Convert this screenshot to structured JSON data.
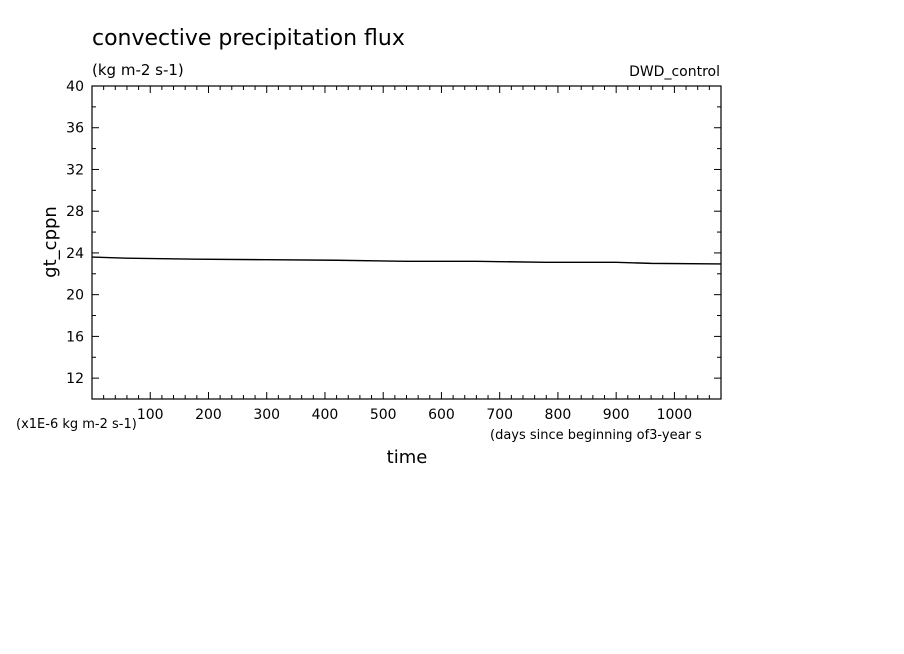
{
  "chart_data": {
    "type": "line",
    "title": "convective precipitation flux",
    "subtitle": "(kg m-2 s-1)",
    "run_label": "DWD_control",
    "xlabel": "time",
    "x_unit_note": "(days since beginning of3-year s",
    "ylabel": "gt_cppn",
    "y_unit_note": "(x1E-6 kg m-2 s-1)",
    "xlim": [
      0,
      1080
    ],
    "ylim": [
      10,
      40
    ],
    "x_ticks": [
      100,
      200,
      300,
      400,
      500,
      600,
      700,
      800,
      900,
      1000
    ],
    "x_tick_labels": [
      "100",
      "200",
      "300",
      "400",
      "500",
      "600",
      "700",
      "800",
      "900",
      "1000"
    ],
    "y_ticks": [
      12,
      16,
      20,
      24,
      28,
      32,
      36,
      40
    ],
    "y_tick_labels": [
      "12",
      "16",
      "20",
      "24",
      "28",
      "32",
      "36",
      "40"
    ],
    "grid": false,
    "series": [
      {
        "color": "#000000",
        "x": [
          0,
          60,
          180,
          300,
          420,
          540,
          660,
          780,
          900,
          960,
          1080
        ],
        "y": [
          23.6,
          23.5,
          23.4,
          23.35,
          23.3,
          23.2,
          23.2,
          23.1,
          23.1,
          23.0,
          22.95
        ]
      }
    ]
  }
}
